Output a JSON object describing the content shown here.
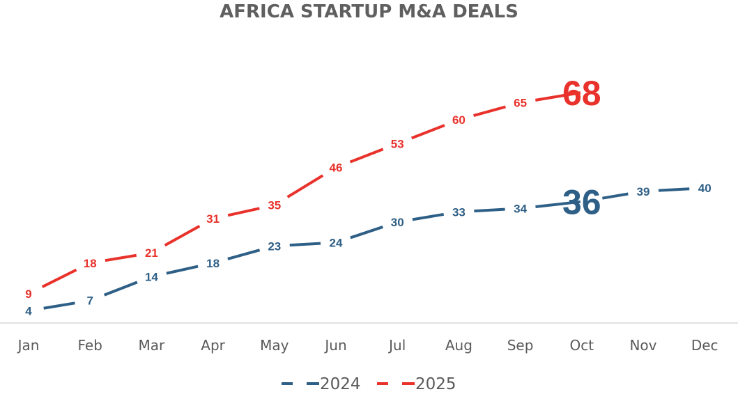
{
  "chart_data": {
    "type": "line",
    "title": "AFRICA STARTUP M&A DEALS",
    "xlabel": "",
    "ylabel": "",
    "categories": [
      "Jan",
      "Feb",
      "Mar",
      "Apr",
      "May",
      "Jun",
      "Jul",
      "Aug",
      "Sep",
      "Oct",
      "Nov",
      "Dec"
    ],
    "ylim": [
      0,
      70
    ],
    "grid": false,
    "legend_position": "bottom",
    "series": [
      {
        "name": "2024",
        "color": "#2e5f86",
        "line_style": "dashed",
        "values": [
          4,
          7,
          14,
          18,
          23,
          24,
          30,
          33,
          34,
          36,
          39,
          40
        ],
        "highlight_index": 9
      },
      {
        "name": "2025",
        "color": "#e8322b",
        "line_style": "dashed",
        "values": [
          9,
          18,
          21,
          31,
          35,
          46,
          53,
          60,
          65,
          68,
          null,
          null
        ],
        "highlight_index": 9
      }
    ]
  }
}
